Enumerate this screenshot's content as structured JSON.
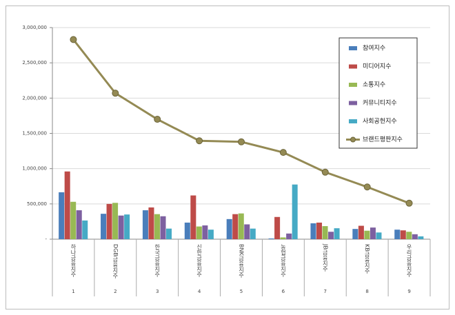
{
  "chart_data": {
    "type": "bar",
    "categories": [
      "하나금융지주",
      "DGB금융지주",
      "한국금융지주",
      "신한금융지주",
      "BNK금융지주",
      "농협금융지주",
      "JB금융지주",
      "KB금융지주",
      "우리금융지주"
    ],
    "ranks": [
      1,
      2,
      3,
      4,
      5,
      6,
      7,
      8,
      9
    ],
    "series": [
      {
        "name": "참여지수",
        "color": "#4a7ebb",
        "values": [
          665000,
          360000,
          410000,
          235000,
          285000,
          10000,
          225000,
          145000,
          135000
        ]
      },
      {
        "name": "미디어지수",
        "color": "#be4b48",
        "values": [
          960000,
          500000,
          450000,
          620000,
          355000,
          315000,
          235000,
          190000,
          125000
        ]
      },
      {
        "name": "소통지수",
        "color": "#98b954",
        "values": [
          530000,
          515000,
          355000,
          180000,
          365000,
          25000,
          185000,
          120000,
          105000
        ]
      },
      {
        "name": "커뮤니티지수",
        "color": "#7d60a0",
        "values": [
          410000,
          335000,
          325000,
          195000,
          210000,
          80000,
          105000,
          165000,
          70000
        ]
      },
      {
        "name": "사회공헌지수",
        "color": "#46aac5",
        "values": [
          265000,
          350000,
          150000,
          135000,
          150000,
          775000,
          155000,
          95000,
          40000
        ]
      },
      {
        "name": "브랜드평판지수",
        "color": "#948a54",
        "type": "line",
        "values": [
          2830000,
          2070000,
          1700000,
          1395000,
          1380000,
          1230000,
          950000,
          740000,
          510000
        ]
      }
    ],
    "ylim": [
      0,
      3000000
    ],
    "yticks": [
      {
        "value": 0,
        "label": "-"
      },
      {
        "value": 500000,
        "label": "500,000"
      },
      {
        "value": 1000000,
        "label": "1,000,000"
      },
      {
        "value": 1500000,
        "label": "1,500,000"
      },
      {
        "value": 2000000,
        "label": "2,000,000"
      },
      {
        "value": 2500000,
        "label": "2,500,000"
      },
      {
        "value": 3000000,
        "label": "3,000,000"
      }
    ],
    "grid": true,
    "legend": "upper right"
  }
}
